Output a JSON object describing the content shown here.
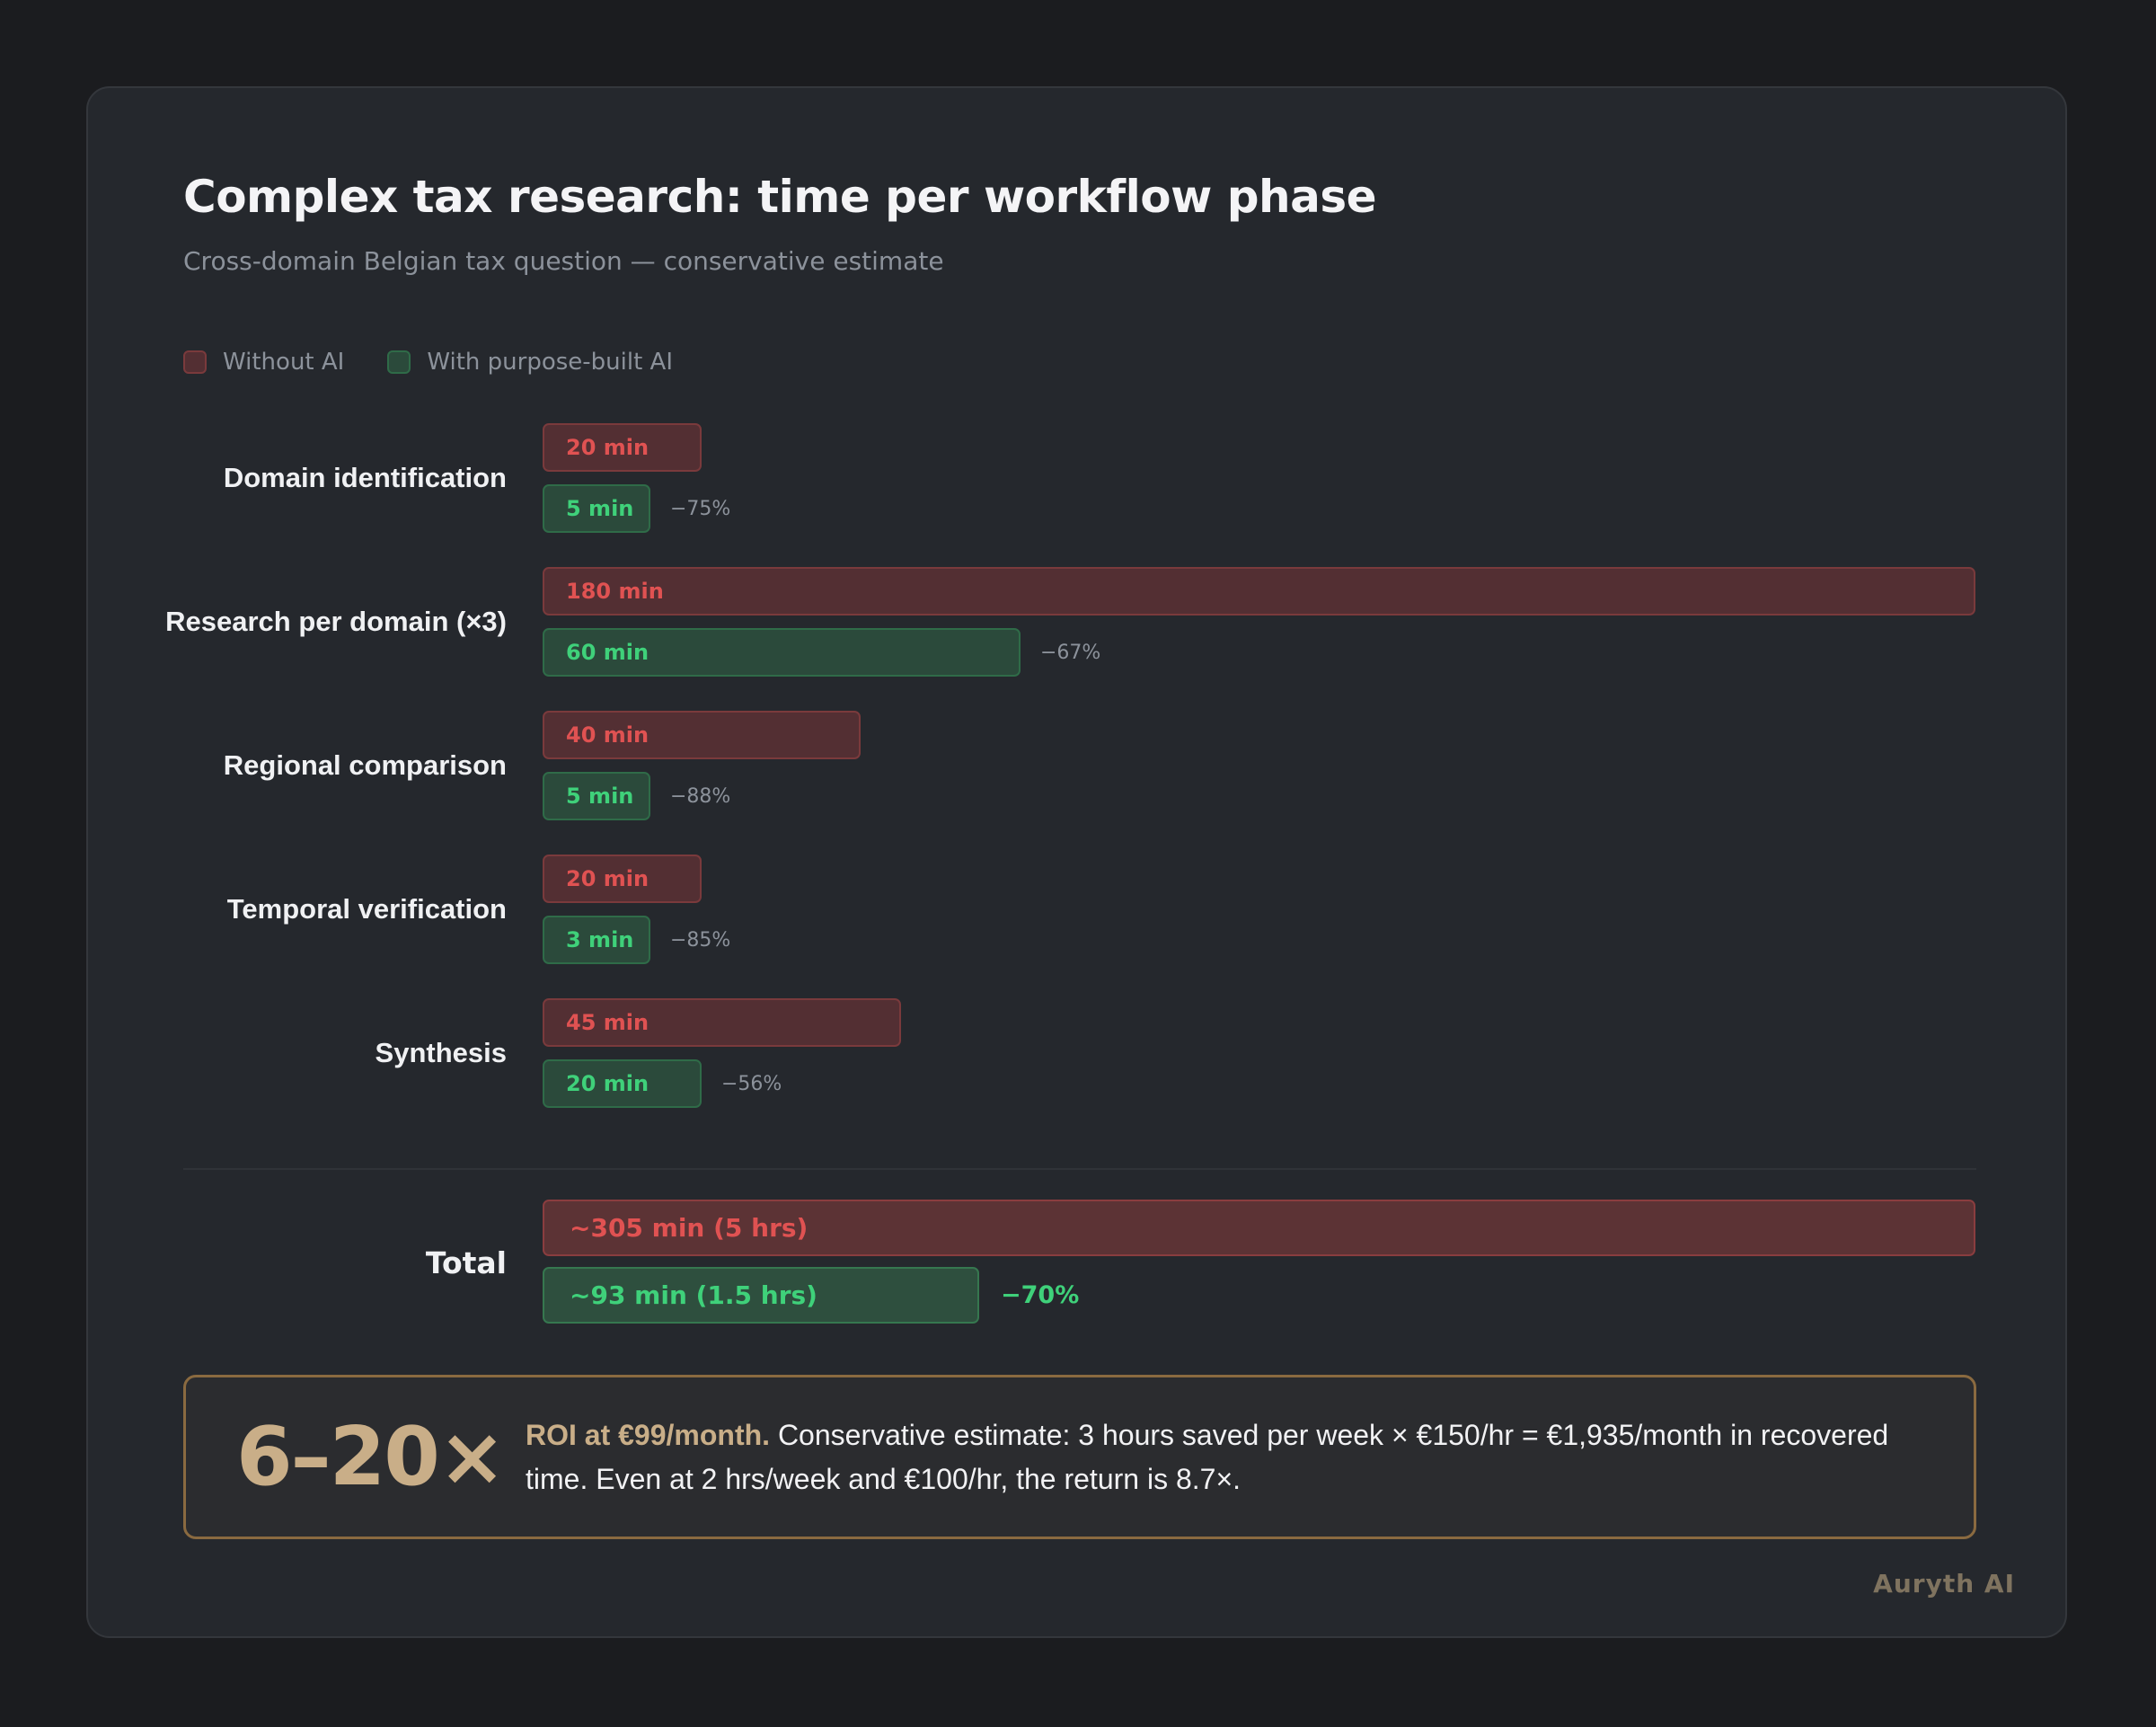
{
  "header": {
    "title": "Complex tax research: time per workflow phase",
    "subtitle": "Cross-domain Belgian tax question — conservative estimate"
  },
  "legend": [
    {
      "label": "Without AI",
      "color": "#532f33"
    },
    {
      "label": "With purpose-built AI",
      "color": "#2b4a3b"
    }
  ],
  "rows": [
    {
      "label": "Domain identification",
      "without": "20 min",
      "with": "5 min",
      "change": "−75%"
    },
    {
      "label": "Research per domain (×3)",
      "without": "180 min",
      "with": "60 min",
      "change": "−67%"
    },
    {
      "label": "Regional comparison",
      "without": "40 min",
      "with": "5 min",
      "change": "−88%"
    },
    {
      "label": "Temporal verification",
      "without": "20 min",
      "with": "3 min",
      "change": "−85%"
    },
    {
      "label": "Synthesis",
      "without": "45 min",
      "with": "20 min",
      "change": "−56%"
    }
  ],
  "total": {
    "label": "Total",
    "without": "~305 min (5 hrs)",
    "with": "~93 min (1.5 hrs)",
    "change": "−70%"
  },
  "roi": {
    "multiplier": "6–20×",
    "lead": "ROI at €99/month.",
    "body": " Conservative estimate: 3 hours saved per week × €150/hr = €1,935/month in recovered time. Even at 2 hrs/week and €100/hr, the return is 8.7×."
  },
  "watermark": "Auryth AI",
  "colors": {
    "without_fill": "#532f33",
    "without_text": "#e05252",
    "with_fill": "#2b4a3b",
    "with_text": "#3fd17a",
    "accent_gold": "#c9ae88"
  },
  "chart_data": {
    "type": "bar",
    "orientation": "horizontal",
    "title": "Complex tax research: time per workflow phase",
    "subtitle": "Cross-domain Belgian tax question — conservative estimate",
    "xlabel": "Minutes",
    "ylabel": "",
    "categories": [
      "Domain identification",
      "Research per domain (×3)",
      "Regional comparison",
      "Temporal verification",
      "Synthesis"
    ],
    "series": [
      {
        "name": "Without AI",
        "values": [
          20,
          180,
          40,
          20,
          45
        ]
      },
      {
        "name": "With purpose-built AI",
        "values": [
          5,
          60,
          5,
          3,
          20
        ]
      }
    ],
    "reductions": [
      "−75%",
      "−67%",
      "−88%",
      "−85%",
      "−56%"
    ],
    "totals": {
      "Without AI": 305,
      "With purpose-built AI": 93,
      "reduction": "−70%"
    },
    "xlim": [
      0,
      180
    ],
    "grid": false,
    "legend_position": "top-left"
  }
}
